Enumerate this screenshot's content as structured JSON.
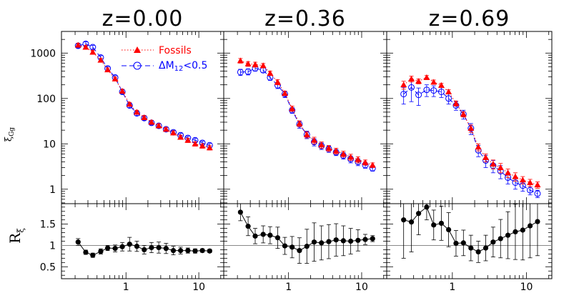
{
  "chart_data": {
    "type": "scatter",
    "xscale": "log",
    "xlim": [
      0.13,
      22
    ],
    "x_ticks": [
      1,
      10
    ],
    "top": {
      "yscale": "log",
      "ylim": [
        0.48,
        3000
      ],
      "ylabel_main": "ξ",
      "ylabel_sub": "Gg",
      "y_ticks": [
        1,
        10,
        100,
        1000
      ]
    },
    "bottom": {
      "ylabel_main": "R",
      "ylabel_sub": "ξ",
      "ylim": [
        0.22,
        1.98
      ],
      "y_ticks": [
        0.5,
        1,
        1.5
      ],
      "reference_line": 1
    },
    "legend": {
      "position": "top-right of first panel",
      "entries": [
        {
          "label": "Fossils",
          "color": "#ff0000",
          "marker": "filled-triangle",
          "line": "dotted"
        },
        {
          "label_main": "ΔM",
          "label_sub": "12",
          "label_rest": "<0.5",
          "color": "#0000ff",
          "marker": "open-circle",
          "line": "dashed"
        }
      ]
    },
    "panels": [
      {
        "title": "z=0.00",
        "x": [
          0.22,
          0.28,
          0.35,
          0.45,
          0.56,
          0.71,
          0.89,
          1.12,
          1.41,
          1.78,
          2.24,
          2.82,
          3.55,
          4.47,
          5.62,
          7.08,
          8.91,
          11.2,
          14.1
        ],
        "series": [
          {
            "name": "Fossils",
            "y": [
              1500,
              1350,
              1050,
              700,
              430,
              270,
              145,
              75,
              50,
              38,
              30,
              25,
              21,
              17.5,
              14,
              12,
              10,
              9,
              8.2
            ],
            "err": [
              150,
              130,
              100,
              70,
              40,
              25,
              14,
              7,
              5,
              4,
              3,
              2.5,
              2,
              1.8,
              1.5,
              1.3,
              1.1,
              1,
              0.9
            ]
          },
          {
            "name": "ΔM12<0.5",
            "y": [
              1450,
              1600,
              1350,
              800,
              460,
              290,
              140,
              70,
              47,
              37,
              29,
              25,
              21,
              18,
              15.5,
              13.5,
              12,
              10.5,
              9.3
            ],
            "err": [
              150,
              160,
              130,
              80,
              45,
              28,
              14,
              7,
              5,
              4,
              3,
              2.5,
              2,
              1.8,
              1.5,
              1.3,
              1.2,
              1,
              0.9
            ]
          }
        ],
        "ratio": {
          "y": [
            1.08,
            0.84,
            0.77,
            0.86,
            0.94,
            0.93,
            0.97,
            1.03,
            0.98,
            0.9,
            0.95,
            0.95,
            0.93,
            0.88,
            0.88,
            0.88,
            0.87,
            0.88,
            0.87
          ],
          "err": [
            0.08,
            0.05,
            0.05,
            0.06,
            0.06,
            0.08,
            0.1,
            0.16,
            0.12,
            0.1,
            0.12,
            0.13,
            0.12,
            0.1,
            0.08,
            0.06,
            0.05,
            0.04,
            0.04
          ]
        }
      },
      {
        "title": "z=0.36",
        "x": [
          0.22,
          0.28,
          0.35,
          0.45,
          0.56,
          0.71,
          0.89,
          1.12,
          1.41,
          1.78,
          2.24,
          2.82,
          3.55,
          4.47,
          5.62,
          7.08,
          8.91,
          11.2,
          14.1
        ],
        "series": [
          {
            "name": "Fossils",
            "y": [
              680,
              580,
              560,
              530,
              360,
              230,
              130,
              60,
              28,
              16,
              12,
              9.5,
              8,
              7,
              6,
              5.1,
              4.5,
              3.9,
              3.4
            ],
            "err": [
              80,
              70,
              70,
              60,
              40,
              30,
              15,
              8,
              4,
              2.5,
              2,
              1.5,
              1.2,
              1,
              0.9,
              0.8,
              0.7,
              0.5,
              0.4
            ]
          },
          {
            "name": "ΔM12<0.5",
            "y": [
              380,
              390,
              460,
              420,
              290,
              195,
              125,
              55,
              27,
              16,
              11,
              9,
              7.7,
              6.5,
              5.5,
              4.6,
              4,
              3.4,
              2.9
            ],
            "err": [
              60,
              60,
              60,
              50,
              40,
              30,
              20,
              8,
              5,
              3,
              2,
              1.5,
              1.2,
              1,
              0.9,
              0.8,
              0.7,
              0.5,
              0.4
            ]
          }
        ],
        "ratio": {
          "y": [
            1.78,
            1.45,
            1.22,
            1.26,
            1.24,
            1.18,
            0.99,
            0.96,
            0.88,
            0.98,
            1.08,
            1.06,
            1.09,
            1.13,
            1.11,
            1.1,
            1.12,
            1.14,
            1.16
          ],
          "err": [
            0.2,
            0.22,
            0.18,
            0.2,
            0.2,
            0.25,
            0.2,
            0.25,
            0.3,
            0.4,
            0.45,
            0.4,
            0.4,
            0.38,
            0.35,
            0.3,
            0.25,
            0.12,
            0.07
          ]
        }
      },
      {
        "title": "z=0.69",
        "x": [
          0.22,
          0.28,
          0.35,
          0.45,
          0.56,
          0.71,
          0.89,
          1.12,
          1.41,
          1.78,
          2.24,
          2.82,
          3.55,
          4.47,
          5.62,
          7.08,
          8.91,
          11.2,
          14.1
        ],
        "series": [
          {
            "name": "Fossils",
            "y": [
              200,
              270,
              240,
              290,
              230,
              195,
              140,
              78,
              45,
              22,
              8.5,
              5,
              3.6,
              3,
              2.3,
              1.9,
              1.6,
              1.4,
              1.25
            ],
            "err": [
              40,
              40,
              30,
              30,
              25,
              20,
              15,
              10,
              6,
              4,
              1.5,
              1,
              0.8,
              0.7,
              0.5,
              0.4,
              0.3,
              0.25,
              0.2
            ]
          },
          {
            "name": "ΔM12<0.5",
            "y": [
              125,
              175,
              120,
              155,
              150,
              140,
              100,
              70,
              45,
              22,
              7.2,
              4.3,
              3.3,
              2.5,
              1.8,
              1.4,
              1.2,
              0.95,
              0.8
            ],
            "err": [
              50,
              90,
              50,
              45,
              40,
              35,
              25,
              15,
              10,
              6,
              2,
              1.3,
              1,
              0.8,
              0.5,
              0.4,
              0.3,
              0.2,
              0.15
            ]
          }
        ],
        "ratio": {
          "y": [
            1.6,
            1.55,
            1.75,
            1.9,
            1.48,
            1.52,
            1.37,
            1.05,
            1.06,
            0.94,
            0.85,
            0.94,
            1.08,
            1.16,
            1.24,
            1.32,
            1.36,
            1.46,
            1.56
          ],
          "err": [
            0.9,
            0.7,
            0.5,
            0.3,
            0.35,
            0.4,
            0.4,
            0.3,
            0.3,
            0.3,
            0.25,
            0.3,
            0.35,
            0.45,
            0.55,
            0.65,
            0.7,
            0.75,
            0.8
          ]
        }
      }
    ]
  }
}
